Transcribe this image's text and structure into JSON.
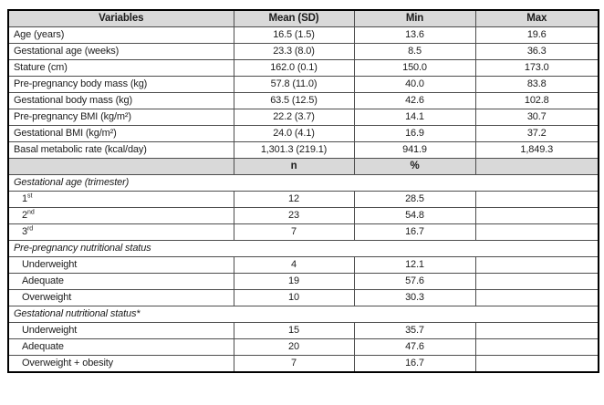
{
  "table": {
    "header": [
      "Variables",
      "Mean (SD)",
      "Min",
      "Max"
    ],
    "stats_rows": [
      {
        "label": "Age (years)",
        "mean_sd": "16.5 (1.5)",
        "min": "13.6",
        "max": "19.6"
      },
      {
        "label": "Gestational age (weeks)",
        "mean_sd": "23.3 (8.0)",
        "min": "8.5",
        "max": "36.3"
      },
      {
        "label": "Stature (cm)",
        "mean_sd": "162.0 (0.1)",
        "min": "150.0",
        "max": "173.0"
      },
      {
        "label": "Pre-pregnancy body mass (kg)",
        "mean_sd": "57.8 (11.0)",
        "min": "40.0",
        "max": "83.8"
      },
      {
        "label": "Gestational body mass (kg)",
        "mean_sd": "63.5 (12.5)",
        "min": "42.6",
        "max": "102.8"
      },
      {
        "label": "Pre-pregnancy BMI (kg/m²)",
        "mean_sd": "22.2 (3.7)",
        "min": "14.1",
        "max": "30.7"
      },
      {
        "label": "Gestational BMI (kg/m²)",
        "mean_sd": "24.0 (4.1)",
        "min": "16.9",
        "max": "37.2"
      },
      {
        "label": "Basal metabolic rate (kcal/day)",
        "mean_sd": "1,301.3 (219.1)",
        "min": "941.9",
        "max": "1,849.3"
      }
    ],
    "subheader": {
      "n": "n",
      "pct": "%"
    },
    "sections": [
      {
        "title": "Gestational age (trimester)",
        "rows": [
          {
            "label": "1",
            "sup": "st",
            "n": "12",
            "pct": "28.5"
          },
          {
            "label": "2",
            "sup": "nd",
            "n": "23",
            "pct": "54.8"
          },
          {
            "label": "3",
            "sup": "rd",
            "n": "7",
            "pct": "16.7"
          }
        ]
      },
      {
        "title": "Pre-pregnancy nutritional status",
        "rows": [
          {
            "label": "Underweight",
            "sup": "",
            "n": "4",
            "pct": "12.1"
          },
          {
            "label": "Adequate",
            "sup": "",
            "n": "19",
            "pct": "57.6"
          },
          {
            "label": "Overweight",
            "sup": "",
            "n": "10",
            "pct": "30.3"
          }
        ]
      },
      {
        "title": "Gestational nutritional status*",
        "rows": [
          {
            "label": "Underweight",
            "sup": "",
            "n": "15",
            "pct": "35.7"
          },
          {
            "label": "Adequate",
            "sup": "",
            "n": "20",
            "pct": "47.6"
          },
          {
            "label": "Overweight + obesity",
            "sup": "",
            "n": "7",
            "pct": "16.7"
          }
        ]
      }
    ],
    "colors": {
      "header_bg": "#d9d9d9",
      "border_outer": "#000000",
      "border_inner": "#4d4d4d",
      "text": "#1c1c1c"
    }
  }
}
